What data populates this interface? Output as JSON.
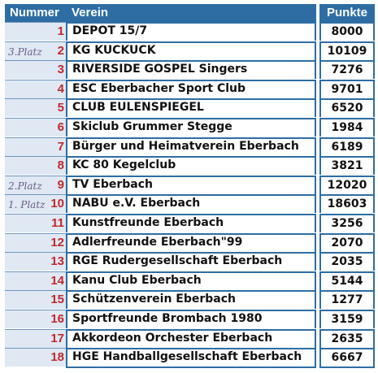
{
  "header": {
    "nummer": "Nummer",
    "verein": "Verein",
    "punkte": "Punkte"
  },
  "rows": [
    {
      "nr": "1",
      "verein": "DEPOT 15/7",
      "punkte": "8000",
      "note": ""
    },
    {
      "nr": "2",
      "verein": "KG KUCKUCK",
      "punkte": "10109",
      "note": "3.Platz"
    },
    {
      "nr": "3",
      "verein": "RIVERSIDE GOSPEL Singers",
      "punkte": "7276",
      "note": ""
    },
    {
      "nr": "4",
      "verein": "ESC Eberbacher Sport Club",
      "punkte": "9701",
      "note": ""
    },
    {
      "nr": "5",
      "verein": "CLUB EULENSPIEGEL",
      "punkte": "6520",
      "note": ""
    },
    {
      "nr": "6",
      "verein": "Skiclub Grummer Stegge",
      "punkte": "1984",
      "note": ""
    },
    {
      "nr": "7",
      "verein": "Bürger und Heimatverein Eberbach",
      "punkte": "6189",
      "note": ""
    },
    {
      "nr": "8",
      "verein": "KC 80 Kegelclub",
      "punkte": "3821",
      "note": ""
    },
    {
      "nr": "9",
      "verein": "TV Eberbach",
      "punkte": "12020",
      "note": "2.Platz"
    },
    {
      "nr": "10",
      "verein": "NABU e.V. Eberbach",
      "punkte": "18603",
      "note": "1. Platz"
    },
    {
      "nr": "11",
      "verein": "Kunstfreunde Eberbach",
      "punkte": "3256",
      "note": ""
    },
    {
      "nr": "12",
      "verein": "Adlerfreunde Eberbach\"99",
      "punkte": "2070",
      "note": ""
    },
    {
      "nr": "13",
      "verein": "RGE Rudergesellschaft Eberbach",
      "punkte": "2035",
      "note": ""
    },
    {
      "nr": "14",
      "verein": "Kanu Club Eberbach",
      "punkte": "5144",
      "note": ""
    },
    {
      "nr": "15",
      "verein": "Schützenverein Eberbach",
      "punkte": "1277",
      "note": ""
    },
    {
      "nr": "16",
      "verein": "Sportfreunde Brombach 1980",
      "punkte": "3159",
      "note": ""
    },
    {
      "nr": "17",
      "verein": "Akkordeon Orchester Eberbach",
      "punkte": "2635",
      "note": ""
    },
    {
      "nr": "18",
      "verein": "HGE Handballgesellschaft Eberbach",
      "punkte": "6667",
      "note": ""
    }
  ]
}
